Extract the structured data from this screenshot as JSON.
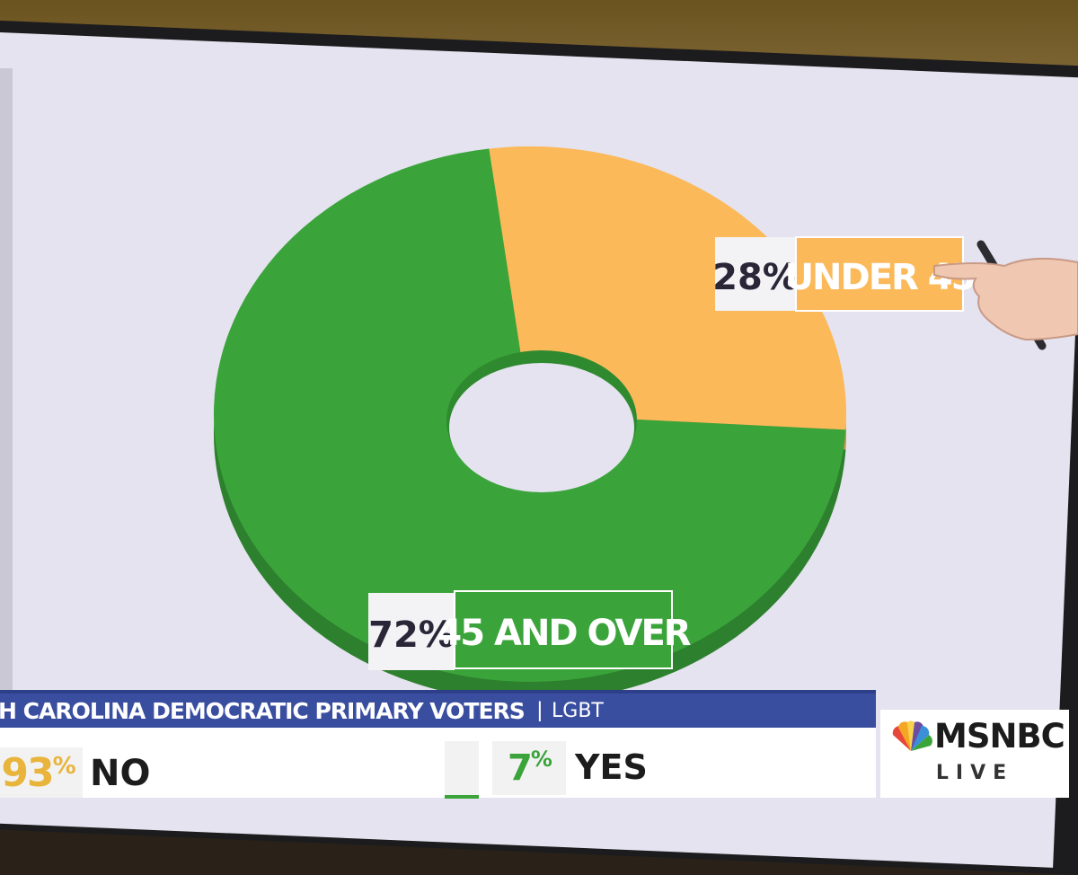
{
  "chart_data": {
    "type": "pie",
    "donut": true,
    "title": "",
    "slices": [
      {
        "label": "UNDER 45",
        "value": 28,
        "value_label": "28%",
        "color": "#fbb95a"
      },
      {
        "label": "45 AND OVER",
        "value": 72,
        "value_label": "72%",
        "color": "#3aa43a"
      }
    ]
  },
  "banner": {
    "title": "TH CAROLINA DEMOCRATIC PRIMARY VOTERS",
    "separator": "|",
    "subtitle": "LGBT"
  },
  "results": [
    {
      "pct_number": "93",
      "pct_sign": "%",
      "label": "NO",
      "color": "#e8b43c"
    },
    {
      "pct_number": "7",
      "pct_sign": "%",
      "label": "YES",
      "color": "#3aa43a"
    }
  ],
  "network": {
    "name": "MSNBC",
    "status": "LIVE"
  },
  "colors": {
    "banner": "#3a4ea0",
    "screen_bg": "#e4e3ef"
  }
}
